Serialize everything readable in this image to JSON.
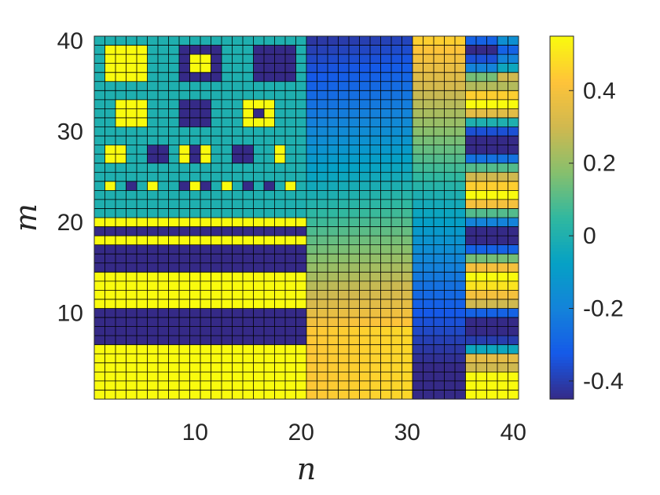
{
  "chart_data": {
    "type": "heatmap",
    "title": "",
    "xlabel": "n",
    "ylabel": "m",
    "x_range": [
      1,
      40
    ],
    "y_range": [
      1,
      40
    ],
    "xlim": [
      1,
      40
    ],
    "ylim": [
      1,
      40
    ],
    "x_ticks": [
      10,
      20,
      30,
      40
    ],
    "x_tick_labels": [
      "10",
      "20",
      "30",
      "40"
    ],
    "y_ticks": [
      10,
      20,
      30,
      40
    ],
    "y_tick_labels": [
      "10",
      "20",
      "30",
      "40"
    ],
    "colormap": "parula",
    "color_range": [
      -0.45,
      0.55
    ],
    "colorbar": {
      "ticks": [
        -0.4,
        -0.2,
        0,
        0.2,
        0.4
      ],
      "tick_labels": [
        "-0.4",
        "-0.2",
        "0",
        "0.2",
        "0.4"
      ]
    },
    "grid": "cell edges drawn in black",
    "regions": [
      {
        "name": "block pattern",
        "n": [
          1,
          20
        ],
        "m": [
          21,
          40
        ],
        "values": [
          0.55,
          0.0,
          -0.45
        ],
        "description": "teal background with yellow and dark-blue square blocks"
      },
      {
        "name": "horizontal stripes",
        "n": [
          1,
          20
        ],
        "m": [
          1,
          20
        ],
        "values": [
          0.55,
          -0.45
        ],
        "description": "alternating yellow and dark-blue rows"
      },
      {
        "name": "smooth gradient",
        "n": [
          21,
          30
        ],
        "m": [
          1,
          40
        ],
        "values": [
          0.45,
          -0.4
        ],
        "description": "orange near m=8 fading to blue at top"
      },
      {
        "name": "smooth gradient",
        "n": [
          31,
          35
        ],
        "m": [
          1,
          40
        ],
        "values": [
          -0.45,
          0.45
        ],
        "description": "dark blue at bottom rising to orange at top"
      },
      {
        "name": "mixed stripes",
        "n": [
          36,
          40
        ],
        "m": [
          1,
          40
        ],
        "values": [
          -0.45,
          0.55
        ],
        "description": "irregular horizontal stripes of many values"
      }
    ]
  }
}
